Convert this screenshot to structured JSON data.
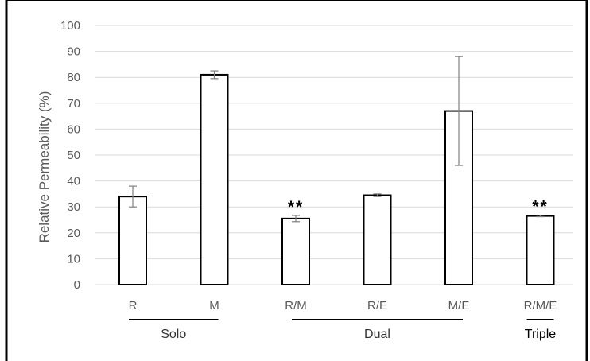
{
  "chart_data": {
    "type": "bar",
    "title": "",
    "xlabel": "",
    "ylabel": "Relative Permeability (%)",
    "ylim": [
      0,
      100
    ],
    "yticks": [
      0,
      10,
      20,
      30,
      40,
      50,
      60,
      70,
      80,
      90,
      100
    ],
    "grid": true,
    "categories": [
      "R",
      "M",
      "R/M",
      "R/E",
      "M/E",
      "R/M/E"
    ],
    "values": [
      34,
      81,
      25.5,
      34.5,
      67,
      26.5
    ],
    "errors": [
      4,
      1.5,
      1.2,
      0.5,
      21,
      0.3
    ],
    "annotations": [
      "",
      "",
      "**",
      "",
      "",
      "**"
    ],
    "groups": [
      {
        "label": "Solo",
        "categories": [
          "R",
          "M"
        ]
      },
      {
        "label": "Dual",
        "categories": [
          "R/M",
          "R/E",
          "M/E"
        ]
      },
      {
        "label": "Triple",
        "categories": [
          "R/M/E"
        ]
      }
    ],
    "colors": {
      "bar_fill": "#ffffff",
      "bar_stroke": "#000000",
      "grid": "#d9d9d9",
      "error": "#7f7f7f",
      "text": "#595959"
    }
  }
}
